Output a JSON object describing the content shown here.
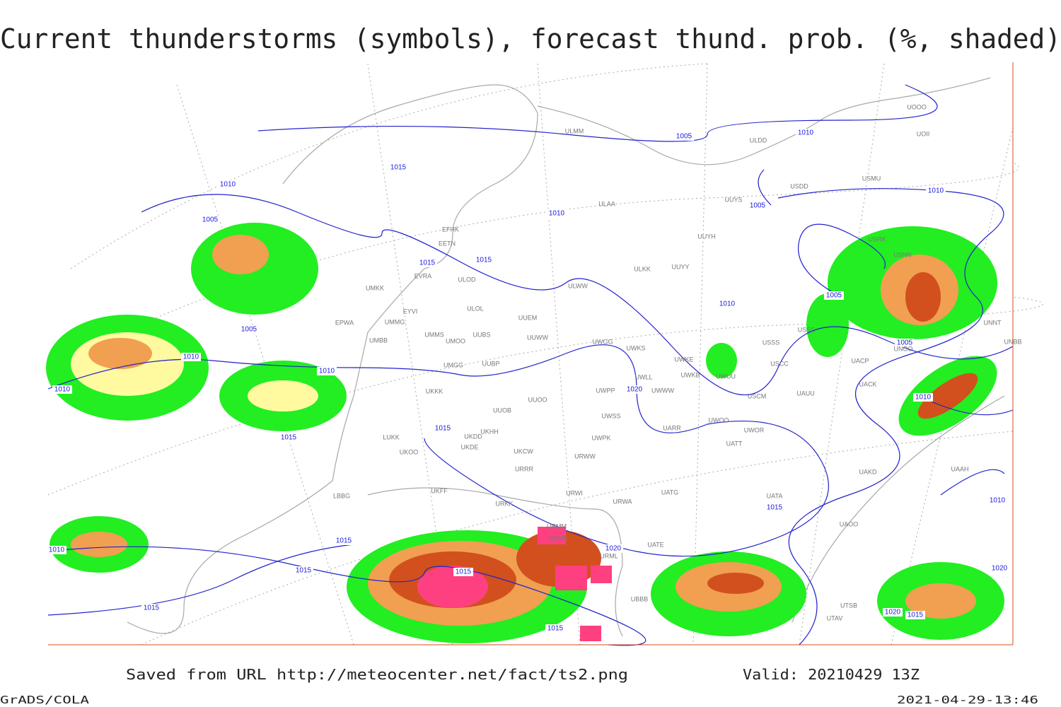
{
  "header": {
    "title": "Current thunderstorms (symbols), forecast thund. prob. (%, shaded)"
  },
  "isobar_labels": [
    1005,
    1015,
    1010,
    1005,
    1010,
    1010,
    1005,
    1010,
    1015,
    1015,
    1015,
    1005,
    1010,
    1005,
    1010,
    1010,
    1015,
    1020,
    1020,
    1015,
    1010,
    1015,
    1015,
    1015,
    1015,
    1010,
    1020,
    1015,
    1005,
    1010,
    1010,
    1020,
    1015
  ],
  "stations": [
    "ULMM",
    "ULDD",
    "USMU",
    "USDD",
    "UUYS",
    "ULAA",
    "UUYH",
    "EFHK",
    "EETN",
    "ULOD",
    "EVRA",
    "UUYY",
    "ULKK",
    "ULWW",
    "UMKK",
    "ULOL",
    "EYVI",
    "UUEM",
    "UMMG",
    "EPWA",
    "UMBB",
    "UMMS",
    "UMOO",
    "UUBS",
    "UUWW",
    "UWGG",
    "UWKS",
    "USSS",
    "UWKE",
    "UMGG",
    "UUBP",
    "USCC",
    "UACP",
    "UWLL",
    "UWKB",
    "UWUU",
    "UWPP",
    "UWWW",
    "UKKK",
    "UUOO",
    "USCM",
    "UAUU",
    "UACK",
    "UUOB",
    "UWSS",
    "UKDD",
    "UKHH",
    "LUKK",
    "UARR",
    "UWOO",
    "UWOR",
    "UWPK",
    "UKDE",
    "UATT",
    "UKCW",
    "UKOO",
    "URWW",
    "URRR",
    "UAKD",
    "UATG",
    "URWI",
    "LBBG",
    "UKFF",
    "URWA",
    "UATA",
    "URKK",
    "UAOO",
    "URMM",
    "URMN",
    "UATE",
    "URML",
    "UBBB",
    "UTSB",
    "UTAV",
    "UNNT",
    "UNBB",
    "UNOO",
    "USRK",
    "USNN",
    "UOOO",
    "UOII",
    "USSS",
    "UAAH"
  ],
  "footer": {
    "source": "Saved from URL http://meteocenter.net/fact/ts2.png",
    "valid": "Valid: 20210429 13Z",
    "software": "GrADS/COLA",
    "timestamp": "2021-04-29-13:46"
  }
}
